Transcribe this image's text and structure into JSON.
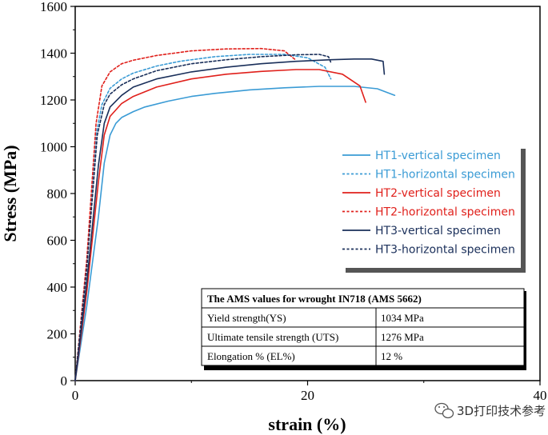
{
  "chart_data": {
    "type": "line",
    "xlabel": "strain (%)",
    "ylabel": "Stress (MPa)",
    "xlim": [
      0,
      40
    ],
    "ylim": [
      0,
      1600
    ],
    "xticks": [
      0,
      20,
      40
    ],
    "yticks": [
      0,
      200,
      400,
      600,
      800,
      1000,
      1200,
      1400,
      1600
    ],
    "xtick_labels": [
      "0",
      "20",
      "40"
    ],
    "ytick_labels": [
      "0",
      "200",
      "400",
      "600",
      "800",
      "1000",
      "1200",
      "1400",
      "1600"
    ],
    "grid": false,
    "legend_position": "right",
    "series": [
      {
        "name": "HT1-vertical specimen",
        "color": "#3a9bd5",
        "dashed": false,
        "x": [
          0,
          1,
          2,
          2.5,
          3,
          3.5,
          4,
          5,
          6,
          8,
          10,
          12,
          15,
          18,
          21,
          24,
          26,
          27.5
        ],
        "y": [
          0,
          320,
          700,
          930,
          1050,
          1100,
          1125,
          1150,
          1170,
          1195,
          1215,
          1228,
          1243,
          1252,
          1258,
          1258,
          1248,
          1220
        ]
      },
      {
        "name": "HT1-horizontal specimen",
        "color": "#3a9bd5",
        "dashed": true,
        "x": [
          0,
          1,
          1.8,
          2.3,
          3,
          4,
          5,
          7,
          9,
          12,
          15,
          18,
          20,
          21.5,
          22
        ],
        "y": [
          0,
          500,
          1050,
          1180,
          1250,
          1290,
          1315,
          1345,
          1365,
          1385,
          1395,
          1395,
          1380,
          1340,
          1290
        ]
      },
      {
        "name": "HT2-vertical specimen",
        "color": "#e0201b",
        "dashed": false,
        "x": [
          0,
          1,
          2,
          2.5,
          3,
          4,
          5,
          7,
          10,
          13,
          16,
          19,
          21,
          23,
          24.5,
          25
        ],
        "y": [
          0,
          380,
          850,
          1050,
          1130,
          1185,
          1215,
          1255,
          1290,
          1310,
          1322,
          1330,
          1330,
          1310,
          1260,
          1190
        ]
      },
      {
        "name": "HT2-horizontal specimen",
        "color": "#e0201b",
        "dashed": true,
        "x": [
          0,
          1,
          1.8,
          2.3,
          3,
          4,
          5,
          7,
          10,
          13,
          16,
          18,
          19
        ],
        "y": [
          0,
          520,
          1100,
          1260,
          1320,
          1355,
          1370,
          1390,
          1410,
          1418,
          1420,
          1410,
          1370
        ]
      },
      {
        "name": "HT3-vertical specimen",
        "color": "#1a2f5a",
        "dashed": false,
        "x": [
          0,
          1,
          2,
          2.5,
          3,
          4,
          5,
          7,
          10,
          13,
          16,
          19,
          22,
          24,
          25.5,
          26.5,
          26.6
        ],
        "y": [
          0,
          420,
          920,
          1100,
          1170,
          1220,
          1255,
          1290,
          1320,
          1340,
          1355,
          1365,
          1372,
          1375,
          1375,
          1365,
          1310
        ]
      },
      {
        "name": "HT3-horizontal specimen",
        "color": "#1a2f5a",
        "dashed": true,
        "x": [
          0,
          1,
          1.9,
          2.5,
          3,
          4,
          5,
          7,
          10,
          13,
          16,
          19,
          21,
          21.8,
          22
        ],
        "y": [
          0,
          480,
          1050,
          1180,
          1225,
          1265,
          1290,
          1325,
          1355,
          1372,
          1385,
          1393,
          1395,
          1385,
          1360
        ]
      }
    ]
  },
  "table": {
    "title": "The AMS values for wrought IN718 (AMS 5662)",
    "rows": [
      {
        "label": "Yield strength(YS)",
        "value": "1034 MPa"
      },
      {
        "label": "Ultimate tensile strength (UTS)",
        "value": "1276 MPa"
      },
      {
        "label": "Elongation % (EL%)",
        "value": "12 %"
      }
    ]
  },
  "watermark": {
    "text": "3D打印技术参考",
    "icon": "wechat-icon"
  }
}
